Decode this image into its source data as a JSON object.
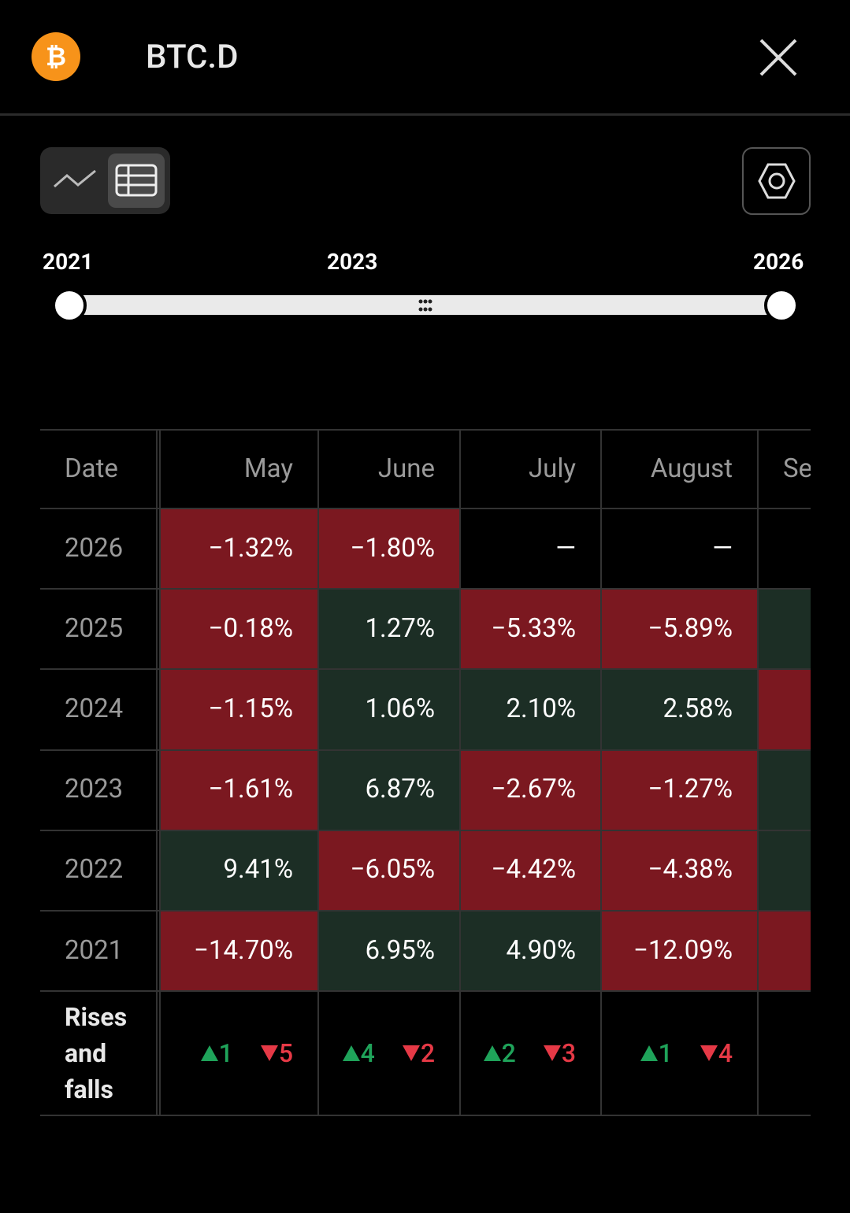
{
  "header": {
    "title": "BTC.D"
  },
  "range": {
    "labels": [
      "2021",
      "2023",
      "2026"
    ]
  },
  "table": {
    "columns": [
      "Date",
      "May",
      "June",
      "July",
      "August",
      "Se"
    ],
    "rows": [
      {
        "year": "2026",
        "cells": [
          "−1.32%",
          "−1.80%",
          "—",
          "—",
          null
        ],
        "colors": [
          "#7b1820",
          "#7b1820",
          null,
          null,
          null
        ]
      },
      {
        "year": "2025",
        "cells": [
          "−0.18%",
          "1.27%",
          "−5.33%",
          "−5.89%",
          null
        ],
        "colors": [
          "#7b1820",
          "#1c2e25",
          "#7b1820",
          "#7b1820",
          "#1c2e25"
        ]
      },
      {
        "year": "2024",
        "cells": [
          "−1.15%",
          "1.06%",
          "2.10%",
          "2.58%",
          null
        ],
        "colors": [
          "#7b1820",
          "#1c2e25",
          "#1c2e25",
          "#1c2e25",
          "#7b1820"
        ]
      },
      {
        "year": "2023",
        "cells": [
          "−1.61%",
          "6.87%",
          "−2.67%",
          "−1.27%",
          null
        ],
        "colors": [
          "#7b1820",
          "#1c2e25",
          "#7b1820",
          "#7b1820",
          "#1c2e25"
        ]
      },
      {
        "year": "2022",
        "cells": [
          "9.41%",
          "−6.05%",
          "−4.42%",
          "−4.38%",
          null
        ],
        "colors": [
          "#1c2e25",
          "#7b1820",
          "#7b1820",
          "#7b1820",
          "#1c2e25"
        ]
      },
      {
        "year": "2021",
        "cells": [
          "−14.70%",
          "6.95%",
          "4.90%",
          "−12.09%",
          null
        ],
        "colors": [
          "#7b1820",
          "#1c2e25",
          "#1c2e25",
          "#7b1820",
          "#7b1820"
        ]
      }
    ],
    "summary": {
      "label": "Rises and falls",
      "counts": [
        {
          "rises": 1,
          "falls": 5
        },
        {
          "rises": 4,
          "falls": 2
        },
        {
          "rises": 2,
          "falls": 3
        },
        {
          "rises": 1,
          "falls": 4
        }
      ]
    }
  }
}
